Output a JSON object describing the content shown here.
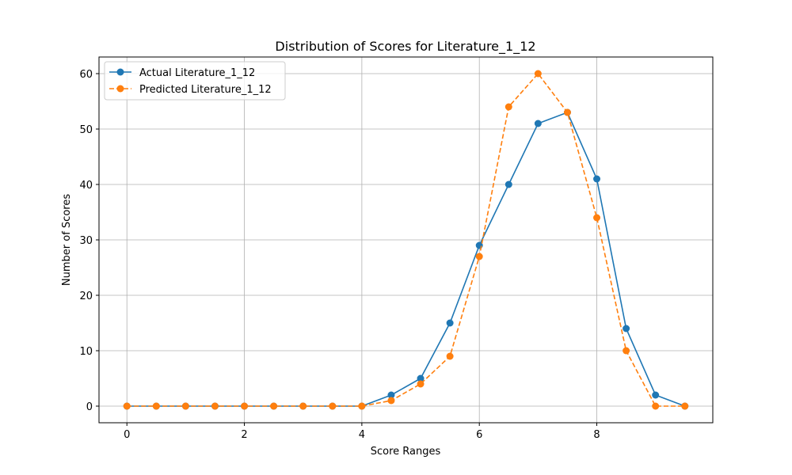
{
  "chart_data": {
    "type": "line",
    "title": "Distribution of Scores for Literature_1_12",
    "xlabel": "Score Ranges",
    "ylabel": "Number of Scores",
    "x": [
      0,
      0.5,
      1,
      1.5,
      2,
      2.5,
      3,
      3.5,
      4,
      4.5,
      5,
      5.5,
      6,
      6.5,
      7,
      7.5,
      8,
      8.5,
      9,
      9.5
    ],
    "xlim": [
      -0.475,
      9.975
    ],
    "ylim": [
      -3,
      63
    ],
    "xticks": [
      0,
      2,
      4,
      6,
      8
    ],
    "yticks": [
      0,
      10,
      20,
      30,
      40,
      50,
      60
    ],
    "grid": true,
    "legend_position": "upper-left",
    "series": [
      {
        "name": "Actual Literature_1_12",
        "color": "#1f77b4",
        "line_style": "solid",
        "marker": "circle",
        "values": [
          0,
          0,
          0,
          0,
          0,
          0,
          0,
          0,
          0,
          2,
          5,
          15,
          29,
          40,
          51,
          53,
          41,
          14,
          2,
          0
        ]
      },
      {
        "name": "Predicted Literature_1_12",
        "color": "#ff7f0e",
        "line_style": "dashed",
        "marker": "circle",
        "values": [
          0,
          0,
          0,
          0,
          0,
          0,
          0,
          0,
          0,
          1,
          4,
          9,
          27,
          54,
          60,
          53,
          34,
          10,
          0,
          0
        ]
      }
    ]
  }
}
